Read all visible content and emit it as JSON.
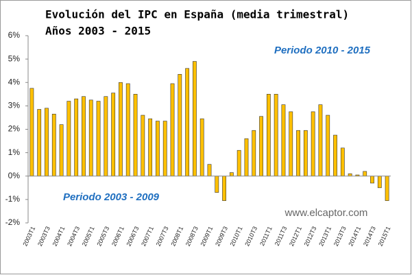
{
  "chart_data": {
    "type": "bar",
    "title": [
      "Evolución del IPC en España (media trimestral)",
      "Años 2003 - 2015"
    ],
    "annotations": [
      "Periodo 2010 - 2015",
      "Periodo 2003 - 2009",
      "www.elcaptor.com"
    ],
    "categories": [
      "2003T1",
      null,
      "2003T3",
      null,
      "2004T1",
      null,
      "2004T3",
      null,
      "2005T1",
      null,
      "2005T3",
      null,
      "2006T1",
      null,
      "2006T3",
      null,
      "2007T1",
      null,
      "2007T3",
      null,
      "2008T1",
      null,
      "2008T3",
      null,
      "2009T1",
      null,
      "2009T3",
      null,
      "2010T1",
      null,
      "2010T3",
      null,
      "2011T1",
      null,
      "2011T3",
      null,
      "2012T1",
      null,
      "2012T3",
      null,
      "2013T1",
      null,
      "2013T3",
      null,
      "2014T1",
      null,
      "2014T3",
      null,
      "2015T1"
    ],
    "values": [
      3.75,
      2.85,
      2.9,
      2.65,
      2.2,
      3.2,
      3.3,
      3.4,
      3.25,
      3.2,
      3.4,
      3.55,
      4.0,
      3.95,
      3.5,
      2.6,
      2.45,
      2.35,
      2.35,
      3.95,
      4.35,
      4.6,
      4.9,
      2.45,
      0.5,
      -0.7,
      -1.05,
      0.15,
      1.1,
      1.6,
      1.95,
      2.55,
      3.5,
      3.5,
      3.05,
      2.75,
      1.95,
      1.95,
      2.75,
      3.05,
      2.6,
      1.75,
      1.2,
      0.1,
      0.05,
      0.2,
      -0.3,
      -0.5,
      -1.05
    ],
    "color": "#ffc000",
    "ylim": [
      -2,
      6
    ],
    "yticks": [
      {
        "value": -2,
        "label": "-2%"
      },
      {
        "value": -1,
        "label": "-1%"
      },
      {
        "value": 0,
        "label": "0%"
      },
      {
        "value": 1,
        "label": "1%"
      },
      {
        "value": 2,
        "label": "2%"
      },
      {
        "value": 3,
        "label": "3%"
      },
      {
        "value": 4,
        "label": "4%"
      },
      {
        "value": 5,
        "label": "5%"
      },
      {
        "value": 6,
        "label": "6%"
      }
    ],
    "grid": false
  }
}
